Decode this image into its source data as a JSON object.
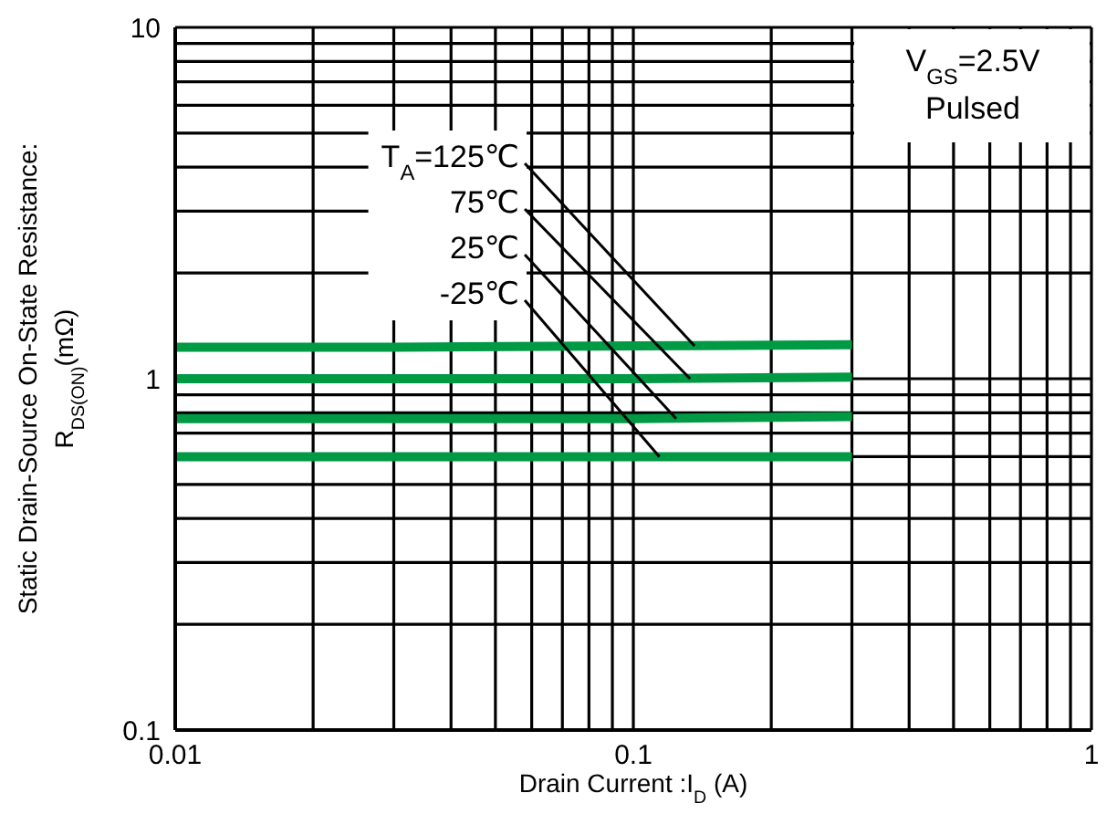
{
  "chart_data": {
    "type": "line",
    "xlabel": "Drain Current :I$_{D}$ (A)",
    "ylabel": "Static Drain-Source On-State Resistance:\nR$_{DS(ON)}$(mΩ)",
    "x": [
      0.01,
      0.03,
      0.1,
      0.3
    ],
    "series": [
      {
        "color": "#009944",
        "values": [
          1.23,
          1.23,
          1.24,
          1.25
        ]
      },
      {
        "color": "#009944",
        "values": [
          1.0,
          1.0,
          1.0,
          1.01
        ]
      },
      {
        "color": "#009944",
        "values": [
          0.77,
          0.77,
          0.77,
          0.78
        ]
      },
      {
        "color": "#009944",
        "values": [
          0.6,
          0.6,
          0.6,
          0.6
        ]
      }
    ],
    "log": "xy",
    "xlim": [
      0.01,
      1
    ],
    "ylim": [
      0.1,
      10
    ],
    "xticks": [
      0.01,
      {
        "value": 0.02,
        "label": null
      },
      {
        "value": 0.03,
        "label": null
      },
      {
        "value": 0.04,
        "label": null
      },
      {
        "value": 0.05,
        "label": null
      },
      {
        "value": 0.06,
        "label": null
      },
      {
        "value": 0.07,
        "label": null
      },
      {
        "value": 0.08,
        "label": null
      },
      {
        "value": 0.09,
        "label": null
      },
      0.1,
      {
        "value": 0.2,
        "label": null
      },
      {
        "value": 0.3,
        "label": null
      },
      {
        "value": 0.4,
        "label": null
      },
      {
        "value": 0.5,
        "label": null
      },
      {
        "value": 0.6,
        "label": null
      },
      {
        "value": 0.7,
        "label": null
      },
      {
        "value": 0.8,
        "label": null
      },
      {
        "value": 0.9,
        "label": null
      },
      1
    ],
    "yticks": [
      0.1,
      {
        "value": 0.2,
        "label": null
      },
      {
        "value": 0.3,
        "label": null
      },
      {
        "value": 0.4,
        "label": null
      },
      {
        "value": 0.5,
        "label": null
      },
      {
        "value": 0.6,
        "label": null
      },
      {
        "value": 0.7,
        "label": null
      },
      {
        "value": 0.8,
        "label": null
      },
      {
        "value": 0.9,
        "label": null
      },
      1,
      {
        "value": 2,
        "label": null
      },
      {
        "value": 3,
        "label": null
      },
      {
        "value": 4,
        "label": null
      },
      {
        "value": 5,
        "label": null
      },
      {
        "value": 6,
        "label": null
      },
      {
        "value": 7,
        "label": null
      },
      {
        "value": 8,
        "label": null
      },
      {
        "value": 9,
        "label": null
      },
      10
    ],
    "grid": true,
    "line_style": "solid",
    "annotations": [
      {
        "text": "T$_{A}$=125℃",
        "x": 0.136,
        "y": 1.24
      },
      {
        "text": "75℃",
        "x": 0.133,
        "y": 1.0
      },
      {
        "text": "25℃",
        "x": 0.124,
        "y": 0.77
      },
      {
        "text": "-25℃",
        "x": 0.114,
        "y": 0.6
      },
      "V$_{GS}$=2.5V",
      "Pulsed"
    ]
  }
}
